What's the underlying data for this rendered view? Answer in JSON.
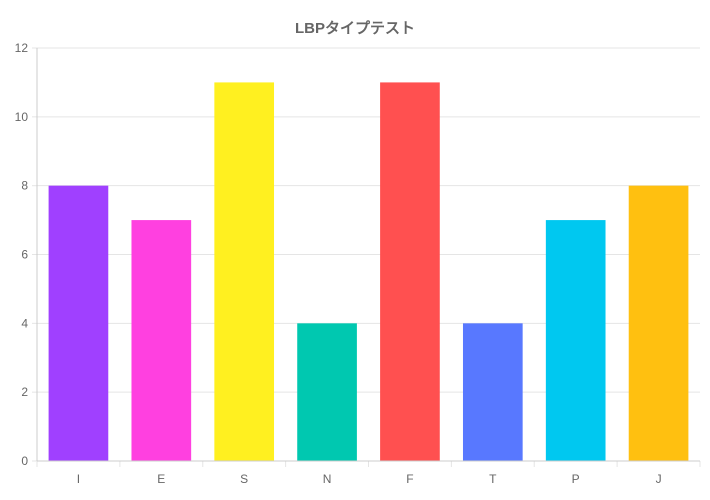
{
  "chart_data": {
    "type": "bar",
    "title": "LBPタイプテスト",
    "categories": [
      "I",
      "E",
      "S",
      "N",
      "F",
      "T",
      "P",
      "J"
    ],
    "values": [
      8,
      7,
      11,
      4,
      11,
      4,
      7,
      8
    ],
    "colors": [
      "#a040ff",
      "#ff40e0",
      "#fff020",
      "#00c8b0",
      "#ff5050",
      "#5878ff",
      "#00c8f0",
      "#ffc010"
    ],
    "ylim": [
      0,
      12
    ],
    "yticks": [
      0,
      2,
      4,
      6,
      8,
      10,
      12
    ],
    "grid": true,
    "legend": false
  }
}
